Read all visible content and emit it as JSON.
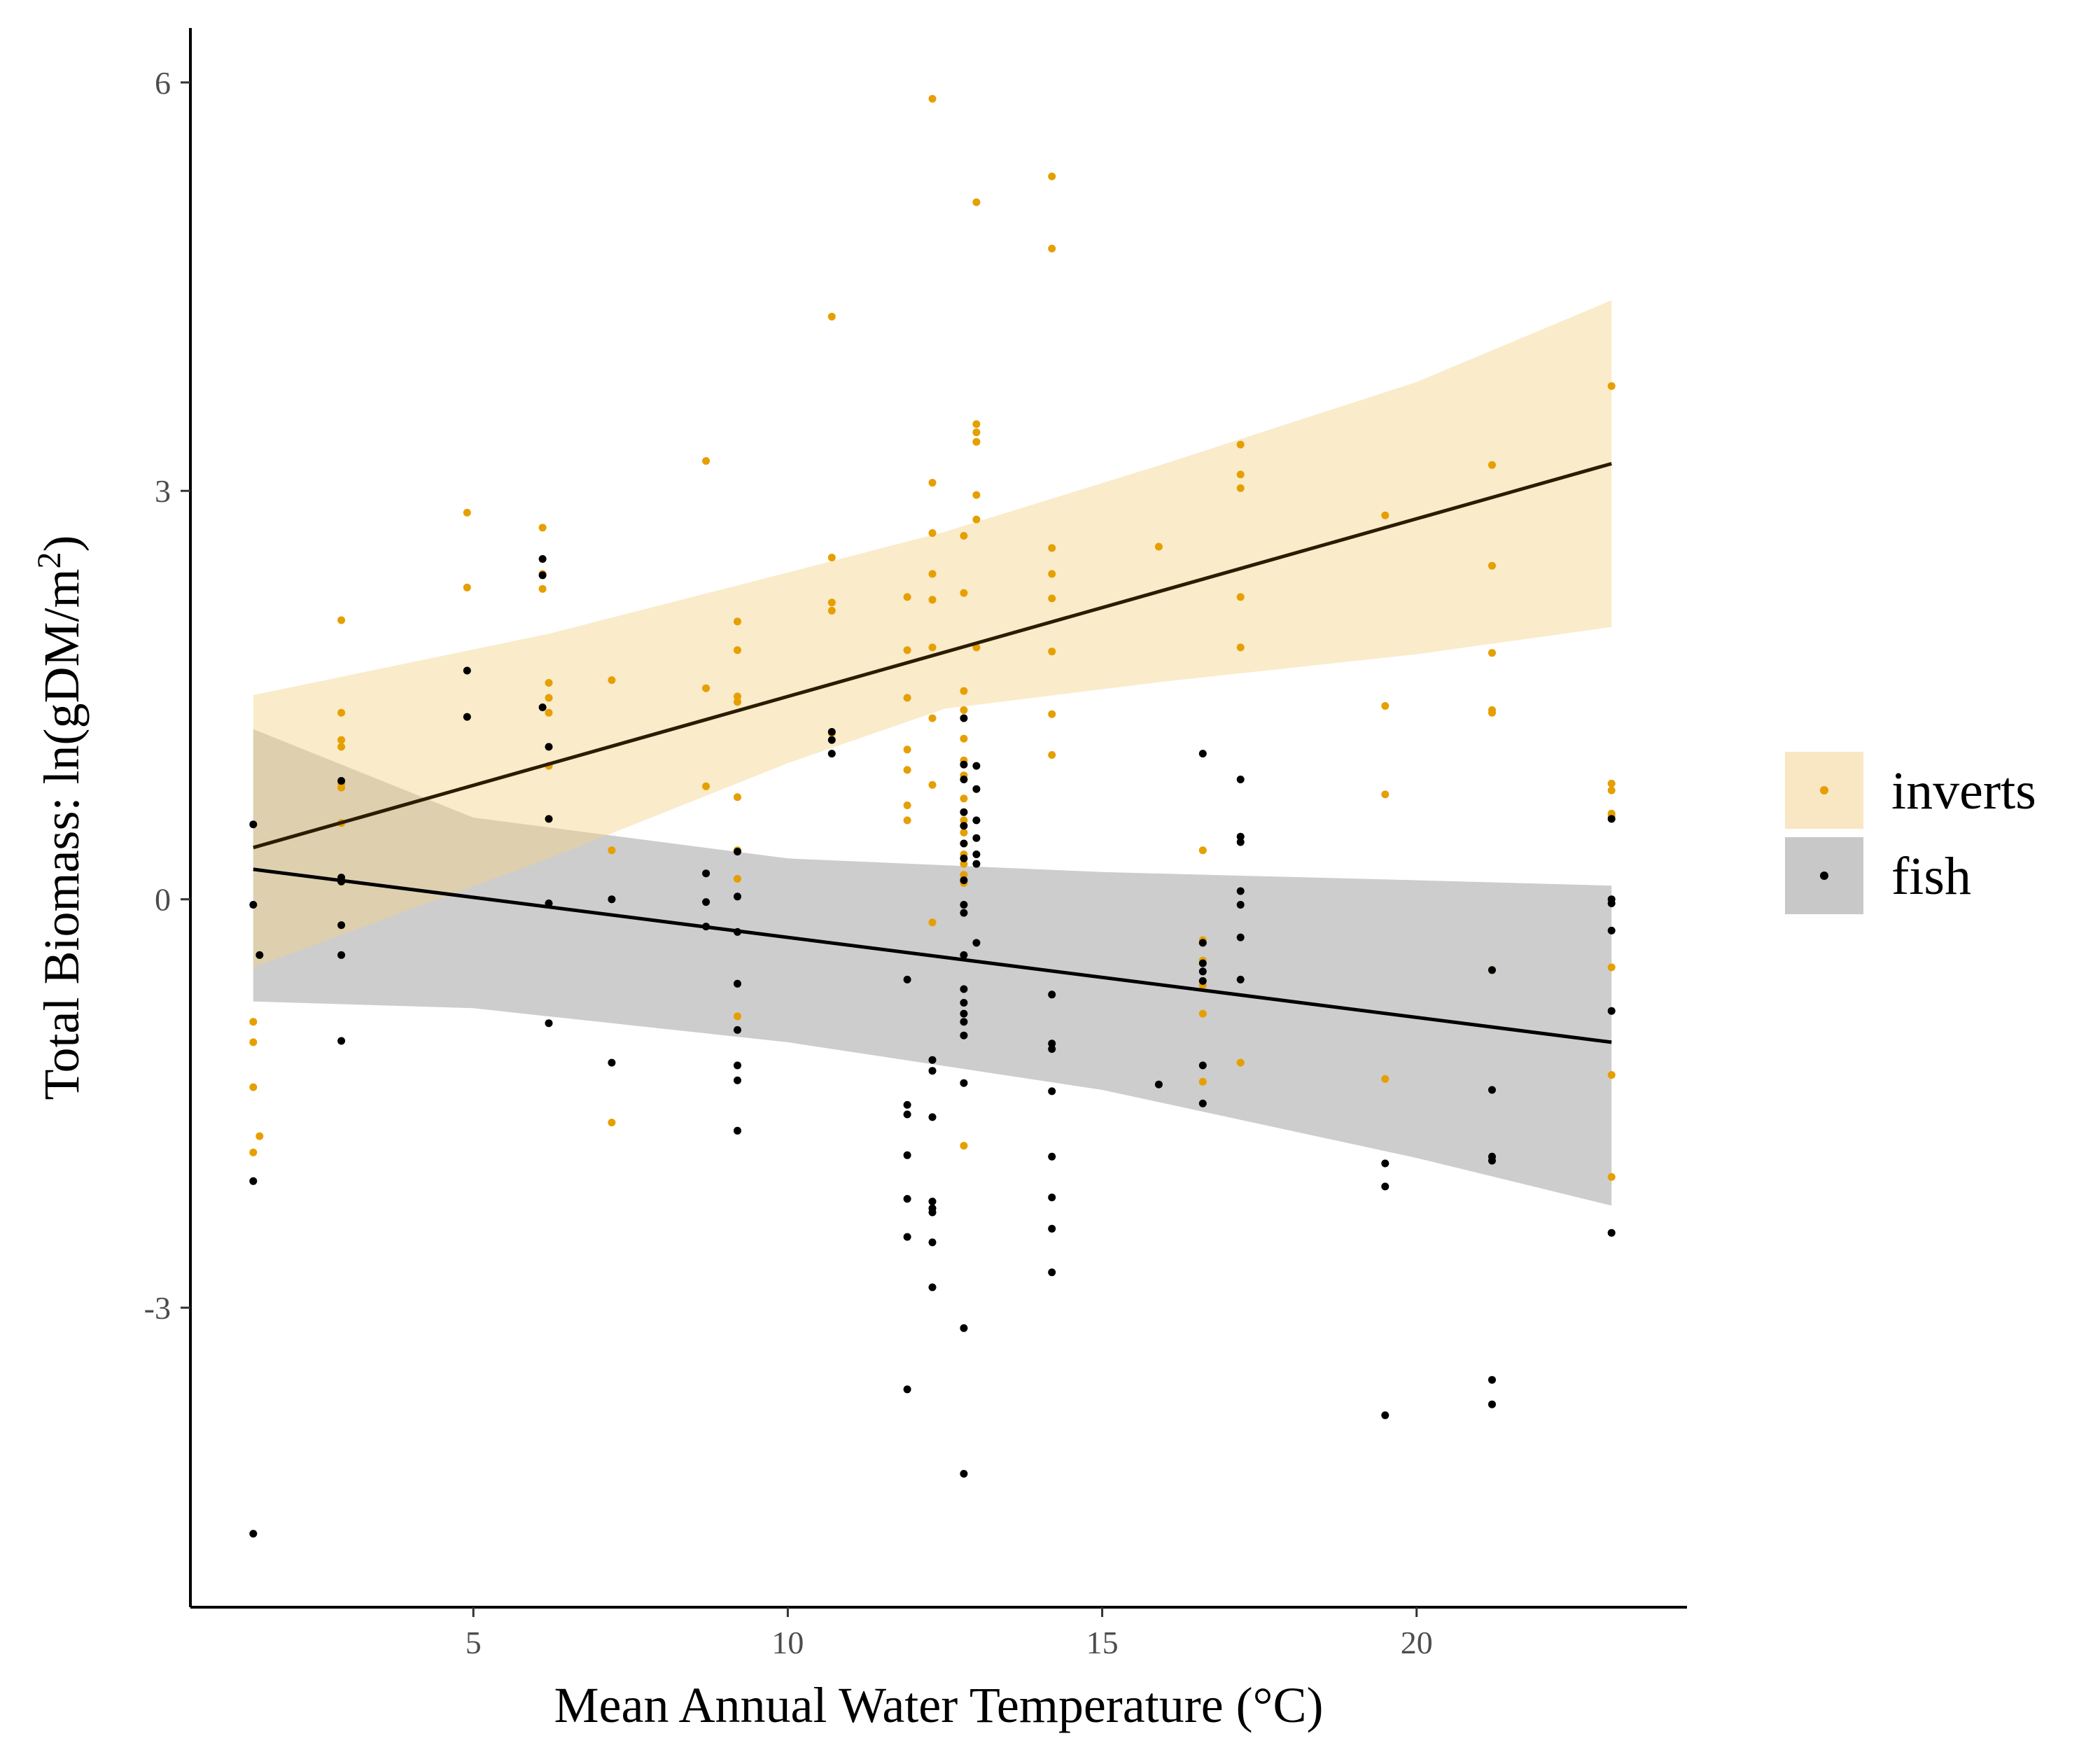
{
  "chart_data": {
    "type": "scatter",
    "xlabel": "Mean Annual Water Temperature (°C)",
    "ylabel_main": "Total Biomass: ln(gDM/m",
    "ylabel_sup": "2",
    "ylabel_close": ")",
    "xlim": [
      0.5,
      24.3
    ],
    "ylim": [
      -5.2,
      6.4
    ],
    "x_ticks": [
      5,
      10,
      15,
      20
    ],
    "x_tick_labels": [
      "5",
      "10",
      "15",
      "20"
    ],
    "y_ticks": [
      -3,
      0,
      3,
      6
    ],
    "y_tick_labels": [
      "-3",
      "0",
      "3",
      "6"
    ],
    "grid": false,
    "legend_position": "right",
    "legend": [
      {
        "key": "inverts",
        "label": "inverts",
        "point_color": "#E69F00",
        "fill_color": "#F9E6C2"
      },
      {
        "key": "fish",
        "label": "fish",
        "point_color": "#000000",
        "fill_color": "#C8C8C8"
      }
    ],
    "series": [
      {
        "name": "inverts",
        "point_color": "#E69F00",
        "line_color": "#2A1C00",
        "band_color": "#F5D38A",
        "band_opacity": 0.45,
        "fit": {
          "x": [
            1.5,
            23.1
          ],
          "y": [
            0.38,
            3.2
          ]
        },
        "band": {
          "x": [
            1.5,
            6.2,
            10,
            12.5,
            16,
            20,
            23.1
          ],
          "lower": [
            -0.5,
            0.3,
            1.0,
            1.4,
            1.6,
            1.8,
            2.0
          ],
          "upper": [
            1.5,
            1.95,
            2.4,
            2.7,
            3.2,
            3.8,
            4.4
          ]
        },
        "points": [
          [
            1.5,
            -0.9
          ],
          [
            1.5,
            -1.05
          ],
          [
            1.5,
            -1.38
          ],
          [
            1.5,
            -1.86
          ],
          [
            1.6,
            -1.74
          ],
          [
            2.9,
            2.05
          ],
          [
            2.9,
            1.37
          ],
          [
            2.9,
            1.17
          ],
          [
            2.9,
            1.12
          ],
          [
            2.9,
            0.85
          ],
          [
            2.9,
            0.82
          ],
          [
            2.9,
            0.56
          ],
          [
            4.9,
            2.84
          ],
          [
            4.9,
            2.29
          ],
          [
            6.1,
            2.73
          ],
          [
            6.1,
            2.39
          ],
          [
            6.1,
            2.28
          ],
          [
            6.2,
            1.59
          ],
          [
            6.2,
            1.48
          ],
          [
            6.2,
            1.37
          ],
          [
            6.2,
            0.98
          ],
          [
            7.2,
            1.61
          ],
          [
            7.2,
            0.36
          ],
          [
            7.2,
            -1.64
          ],
          [
            8.7,
            3.22
          ],
          [
            8.7,
            1.55
          ],
          [
            8.7,
            0.83
          ],
          [
            9.2,
            2.04
          ],
          [
            9.2,
            1.83
          ],
          [
            9.2,
            1.49
          ],
          [
            9.2,
            1.45
          ],
          [
            9.2,
            0.75
          ],
          [
            9.2,
            0.36
          ],
          [
            9.2,
            0.15
          ],
          [
            9.2,
            -0.86
          ],
          [
            10.7,
            4.28
          ],
          [
            10.7,
            2.51
          ],
          [
            10.7,
            2.18
          ],
          [
            10.7,
            2.12
          ],
          [
            10.7,
            1.22
          ],
          [
            11.9,
            2.22
          ],
          [
            11.9,
            1.83
          ],
          [
            11.9,
            1.48
          ],
          [
            11.9,
            1.1
          ],
          [
            11.9,
            0.95
          ],
          [
            11.9,
            0.69
          ],
          [
            11.9,
            0.58
          ],
          [
            12.3,
            5.88
          ],
          [
            12.3,
            3.06
          ],
          [
            12.3,
            2.69
          ],
          [
            12.3,
            2.39
          ],
          [
            12.3,
            2.2
          ],
          [
            12.3,
            1.85
          ],
          [
            12.3,
            1.33
          ],
          [
            12.3,
            0.84
          ],
          [
            12.3,
            -0.17
          ],
          [
            12.8,
            2.67
          ],
          [
            12.8,
            2.25
          ],
          [
            12.8,
            1.53
          ],
          [
            12.8,
            1.39
          ],
          [
            12.8,
            1.18
          ],
          [
            12.8,
            1.02
          ],
          [
            12.8,
            0.91
          ],
          [
            12.8,
            0.74
          ],
          [
            12.8,
            0.58
          ],
          [
            12.8,
            0.49
          ],
          [
            12.8,
            0.41
          ],
          [
            12.8,
            0.33
          ],
          [
            12.8,
            0.26
          ],
          [
            12.8,
            0.18
          ],
          [
            12.8,
            0.12
          ],
          [
            12.8,
            -1.81
          ],
          [
            13.0,
            5.12
          ],
          [
            13.0,
            3.49
          ],
          [
            13.0,
            3.43
          ],
          [
            13.0,
            3.36
          ],
          [
            13.0,
            2.97
          ],
          [
            13.0,
            2.79
          ],
          [
            13.0,
            1.85
          ],
          [
            14.2,
            5.31
          ],
          [
            14.2,
            4.78
          ],
          [
            14.2,
            2.58
          ],
          [
            14.2,
            2.39
          ],
          [
            14.2,
            2.21
          ],
          [
            14.2,
            1.82
          ],
          [
            14.2,
            1.36
          ],
          [
            14.2,
            1.06
          ],
          [
            15.9,
            2.59
          ],
          [
            16.6,
            0.36
          ],
          [
            16.6,
            -0.3
          ],
          [
            16.6,
            -0.45
          ],
          [
            16.6,
            -0.63
          ],
          [
            16.6,
            -0.84
          ],
          [
            16.6,
            -1.34
          ],
          [
            17.2,
            3.34
          ],
          [
            17.2,
            3.12
          ],
          [
            17.2,
            3.02
          ],
          [
            17.2,
            2.22
          ],
          [
            17.2,
            1.85
          ],
          [
            17.2,
            -1.2
          ],
          [
            19.5,
            2.82
          ],
          [
            19.5,
            1.42
          ],
          [
            19.5,
            0.77
          ],
          [
            19.5,
            -1.32
          ],
          [
            21.2,
            3.19
          ],
          [
            21.2,
            2.45
          ],
          [
            21.2,
            1.81
          ],
          [
            21.2,
            1.39
          ],
          [
            21.2,
            1.37
          ],
          [
            21.2,
            -0.52
          ],
          [
            23.1,
            3.77
          ],
          [
            23.1,
            0.85
          ],
          [
            23.1,
            0.8
          ],
          [
            23.1,
            0.63
          ],
          [
            23.1,
            0.61
          ],
          [
            23.1,
            -0.5
          ],
          [
            23.1,
            -1.29
          ],
          [
            23.1,
            -2.04
          ]
        ]
      },
      {
        "name": "fish",
        "point_color": "#000000",
        "line_color": "#000000",
        "band_color": "#A8A8A8",
        "band_opacity": 0.58,
        "fit": {
          "x": [
            1.5,
            23.1
          ],
          "y": [
            0.22,
            -1.05
          ]
        },
        "band": {
          "x": [
            1.5,
            5,
            10,
            15,
            20,
            23.1
          ],
          "lower": [
            -0.75,
            -0.8,
            -1.05,
            -1.4,
            -1.9,
            -2.25
          ],
          "upper": [
            1.25,
            0.6,
            0.3,
            0.2,
            0.14,
            0.1
          ]
        },
        "points": [
          [
            1.5,
            0.55
          ],
          [
            1.5,
            -0.04
          ],
          [
            1.6,
            -0.41
          ],
          [
            1.5,
            -2.07
          ],
          [
            1.5,
            -4.66
          ],
          [
            2.9,
            0.87
          ],
          [
            2.9,
            0.16
          ],
          [
            2.9,
            0.13
          ],
          [
            2.9,
            -0.19
          ],
          [
            2.9,
            -0.41
          ],
          [
            2.9,
            -1.04
          ],
          [
            4.9,
            1.68
          ],
          [
            4.9,
            1.34
          ],
          [
            6.1,
            2.5
          ],
          [
            6.1,
            2.38
          ],
          [
            6.1,
            1.41
          ],
          [
            6.2,
            1.12
          ],
          [
            6.2,
            0.59
          ],
          [
            6.2,
            -0.03
          ],
          [
            6.2,
            -0.91
          ],
          [
            7.2,
            0.0
          ],
          [
            7.2,
            -1.2
          ],
          [
            8.7,
            0.19
          ],
          [
            8.7,
            -0.02
          ],
          [
            8.7,
            -0.2
          ],
          [
            9.2,
            0.35
          ],
          [
            9.2,
            0.02
          ],
          [
            9.2,
            -0.24
          ],
          [
            9.2,
            -0.62
          ],
          [
            9.2,
            -0.96
          ],
          [
            9.2,
            -1.22
          ],
          [
            9.2,
            -1.33
          ],
          [
            9.2,
            -1.7
          ],
          [
            10.7,
            1.23
          ],
          [
            10.7,
            1.17
          ],
          [
            10.7,
            1.07
          ],
          [
            11.9,
            -0.59
          ],
          [
            11.9,
            -1.51
          ],
          [
            11.9,
            -1.58
          ],
          [
            11.9,
            -1.88
          ],
          [
            11.9,
            -2.2
          ],
          [
            11.9,
            -2.48
          ],
          [
            11.9,
            -3.6
          ],
          [
            12.3,
            -1.18
          ],
          [
            12.3,
            -1.26
          ],
          [
            12.3,
            -1.6
          ],
          [
            12.3,
            -2.22
          ],
          [
            12.3,
            -2.27
          ],
          [
            12.3,
            -2.3
          ],
          [
            12.3,
            -2.52
          ],
          [
            12.3,
            -2.85
          ],
          [
            12.8,
            1.33
          ],
          [
            12.8,
            0.99
          ],
          [
            12.8,
            0.88
          ],
          [
            12.8,
            0.64
          ],
          [
            12.8,
            0.54
          ],
          [
            12.8,
            0.41
          ],
          [
            12.8,
            0.3
          ],
          [
            12.8,
            0.14
          ],
          [
            12.8,
            -0.04
          ],
          [
            12.8,
            -0.1
          ],
          [
            12.8,
            -0.41
          ],
          [
            12.8,
            -0.66
          ],
          [
            12.8,
            -0.76
          ],
          [
            12.8,
            -0.84
          ],
          [
            12.8,
            -0.9
          ],
          [
            12.8,
            -1.0
          ],
          [
            12.8,
            -1.35
          ],
          [
            12.8,
            -3.15
          ],
          [
            12.8,
            -4.22
          ],
          [
            13.0,
            0.98
          ],
          [
            13.0,
            0.81
          ],
          [
            13.0,
            0.58
          ],
          [
            13.0,
            0.45
          ],
          [
            13.0,
            0.33
          ],
          [
            13.0,
            0.26
          ],
          [
            13.0,
            -0.32
          ],
          [
            14.2,
            -0.7
          ],
          [
            14.2,
            -1.06
          ],
          [
            14.2,
            -1.1
          ],
          [
            14.2,
            -1.41
          ],
          [
            14.2,
            -1.89
          ],
          [
            14.2,
            -2.19
          ],
          [
            14.2,
            -2.42
          ],
          [
            14.2,
            -2.74
          ],
          [
            15.9,
            -1.36
          ],
          [
            16.6,
            1.07
          ],
          [
            16.6,
            -0.32
          ],
          [
            16.6,
            -0.47
          ],
          [
            16.6,
            -0.53
          ],
          [
            16.6,
            -0.6
          ],
          [
            16.6,
            -1.22
          ],
          [
            16.6,
            -1.5
          ],
          [
            17.2,
            0.88
          ],
          [
            17.2,
            0.46
          ],
          [
            17.2,
            0.42
          ],
          [
            17.2,
            0.06
          ],
          [
            17.2,
            -0.04
          ],
          [
            17.2,
            -0.28
          ],
          [
            17.2,
            -0.59
          ],
          [
            19.5,
            -1.94
          ],
          [
            19.5,
            -2.11
          ],
          [
            19.5,
            -3.79
          ],
          [
            21.2,
            -0.52
          ],
          [
            21.2,
            -1.4
          ],
          [
            21.2,
            -1.89
          ],
          [
            21.2,
            -1.92
          ],
          [
            21.2,
            -3.53
          ],
          [
            21.2,
            -3.71
          ],
          [
            23.1,
            0.59
          ],
          [
            23.1,
            0.0
          ],
          [
            23.1,
            -0.03
          ],
          [
            23.1,
            -0.23
          ],
          [
            23.1,
            -0.82
          ],
          [
            23.1,
            -2.45
          ]
        ]
      }
    ]
  }
}
